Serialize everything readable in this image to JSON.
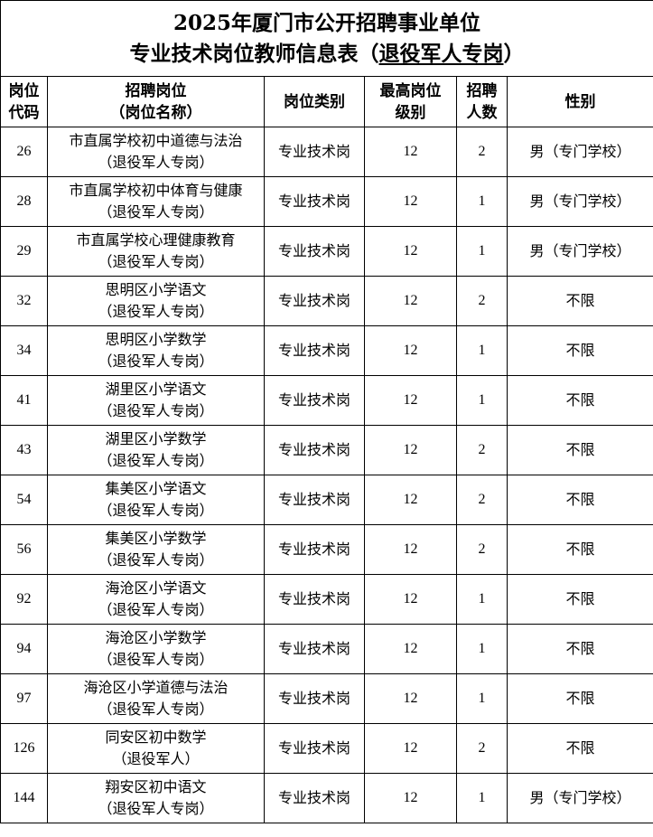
{
  "title": {
    "line1": "2025年厦门市公开招聘事业单位",
    "line2_prefix": "专业技术岗位教师信息表（",
    "line2_underlined": "退役军人专岗",
    "line2_suffix": "）"
  },
  "headers": [
    [
      "岗位",
      "代码"
    ],
    [
      "招聘岗位",
      "（岗位名称）"
    ],
    [
      "岗位类别"
    ],
    [
      "最高岗位",
      "级别"
    ],
    [
      "招聘",
      "人数"
    ],
    [
      "性别"
    ]
  ],
  "rows": [
    {
      "code": "26",
      "name": "市直属学校初中道德与法治",
      "sub": "（退役军人专岗）",
      "type": "专业技术岗",
      "level": "12",
      "count": "2",
      "gender": "男（专门学校）"
    },
    {
      "code": "28",
      "name": "市直属学校初中体育与健康",
      "sub": "（退役军人专岗）",
      "type": "专业技术岗",
      "level": "12",
      "count": "1",
      "gender": "男（专门学校）"
    },
    {
      "code": "29",
      "name": "市直属学校心理健康教育",
      "sub": "（退役军人专岗）",
      "type": "专业技术岗",
      "level": "12",
      "count": "1",
      "gender": "男（专门学校）"
    },
    {
      "code": "32",
      "name": "思明区小学语文",
      "sub": "（退役军人专岗）",
      "type": "专业技术岗",
      "level": "12",
      "count": "2",
      "gender": "不限"
    },
    {
      "code": "34",
      "name": "思明区小学数学",
      "sub": "（退役军人专岗）",
      "type": "专业技术岗",
      "level": "12",
      "count": "1",
      "gender": "不限"
    },
    {
      "code": "41",
      "name": "湖里区小学语文",
      "sub": "（退役军人专岗）",
      "type": "专业技术岗",
      "level": "12",
      "count": "1",
      "gender": "不限"
    },
    {
      "code": "43",
      "name": "湖里区小学数学",
      "sub": "（退役军人专岗）",
      "type": "专业技术岗",
      "level": "12",
      "count": "2",
      "gender": "不限"
    },
    {
      "code": "54",
      "name": "集美区小学语文",
      "sub": "（退役军人专岗）",
      "type": "专业技术岗",
      "level": "12",
      "count": "2",
      "gender": "不限"
    },
    {
      "code": "56",
      "name": "集美区小学数学",
      "sub": "（退役军人专岗）",
      "type": "专业技术岗",
      "level": "12",
      "count": "2",
      "gender": "不限"
    },
    {
      "code": "92",
      "name": "海沧区小学语文",
      "sub": "（退役军人专岗）",
      "type": "专业技术岗",
      "level": "12",
      "count": "1",
      "gender": "不限"
    },
    {
      "code": "94",
      "name": "海沧区小学数学",
      "sub": "（退役军人专岗）",
      "type": "专业技术岗",
      "level": "12",
      "count": "1",
      "gender": "不限"
    },
    {
      "code": "97",
      "name": "海沧区小学道德与法治",
      "sub": "（退役军人专岗）",
      "type": "专业技术岗",
      "level": "12",
      "count": "1",
      "gender": "不限"
    },
    {
      "code": "126",
      "name": "同安区初中数学",
      "sub": "（退役军人）",
      "type": "专业技术岗",
      "level": "12",
      "count": "2",
      "gender": "不限"
    },
    {
      "code": "144",
      "name": "翔安区初中语文",
      "sub": "（退役军人专岗）",
      "type": "专业技术岗",
      "level": "12",
      "count": "1",
      "gender": "男（专门学校）"
    }
  ]
}
